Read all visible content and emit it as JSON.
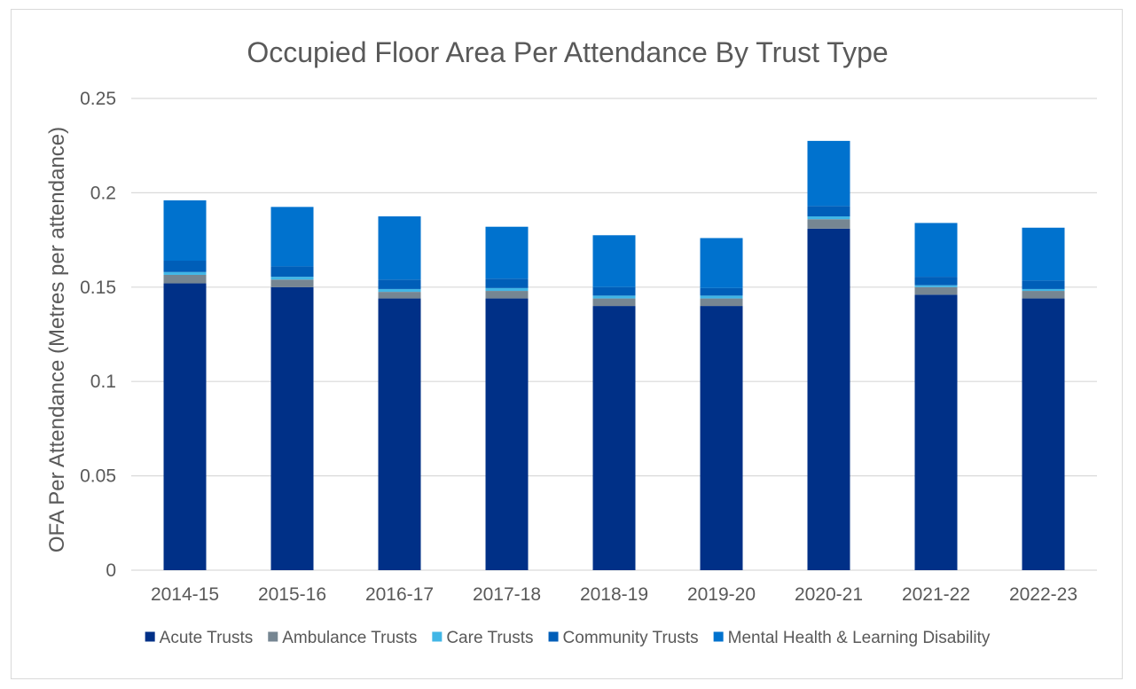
{
  "chart_data": {
    "type": "bar",
    "stacked": true,
    "title": "Occupied Floor Area Per Attendance By Trust Type",
    "ylabel": "OFA Per Attendance (Metres per attendance)",
    "xlabel": "",
    "ylim": [
      0,
      0.25
    ],
    "yticks": [
      0,
      0.05,
      0.1,
      0.15,
      0.2,
      0.25
    ],
    "ytick_labels": [
      "0",
      "0.05",
      "0.1",
      "0.15",
      "0.2",
      "0.25"
    ],
    "grid": true,
    "legend_position": "bottom",
    "categories": [
      "2014-15",
      "2015-16",
      "2016-17",
      "2017-18",
      "2018-19",
      "2019-20",
      "2020-21",
      "2021-22",
      "2022-23"
    ],
    "series": [
      {
        "name": "Acute Trusts",
        "color": "#003087",
        "values": [
          0.152,
          0.15,
          0.144,
          0.144,
          0.14,
          0.14,
          0.181,
          0.146,
          0.144
        ]
      },
      {
        "name": "Ambulance Trusts",
        "color": "#768692",
        "values": [
          0.0045,
          0.004,
          0.0035,
          0.004,
          0.004,
          0.004,
          0.005,
          0.004,
          0.004
        ]
      },
      {
        "name": "Care Trusts",
        "color": "#41b6e6",
        "values": [
          0.0015,
          0.0015,
          0.0015,
          0.0015,
          0.0015,
          0.0015,
          0.0015,
          0.001,
          0.001
        ]
      },
      {
        "name": "Community Trusts",
        "color": "#005eb8",
        "values": [
          0.006,
          0.0055,
          0.005,
          0.005,
          0.0045,
          0.004,
          0.0055,
          0.0045,
          0.0045
        ]
      },
      {
        "name": "Mental Health & Learning Disability",
        "color": "#0072ce",
        "values": [
          0.032,
          0.0315,
          0.0335,
          0.0275,
          0.0275,
          0.0265,
          0.0345,
          0.0285,
          0.028
        ]
      }
    ]
  }
}
